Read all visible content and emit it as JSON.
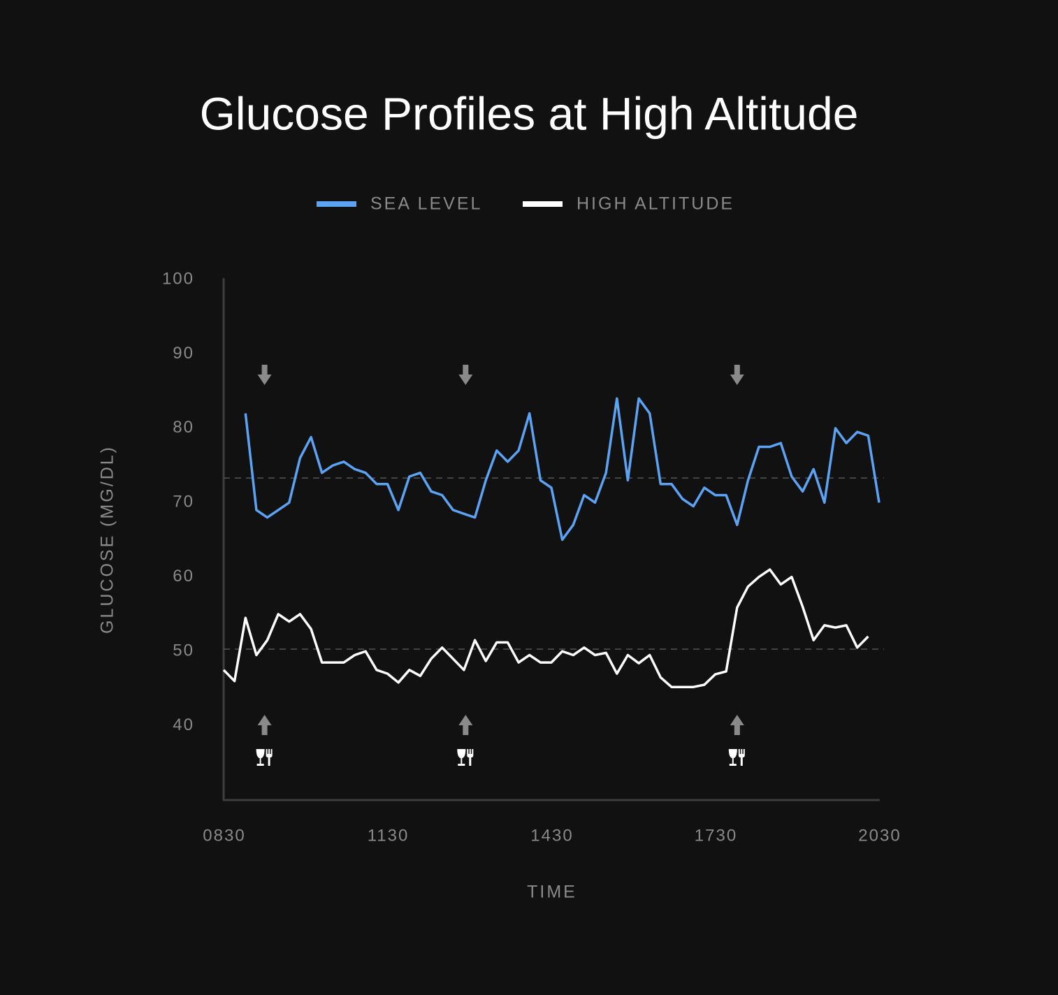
{
  "chart_data": {
    "type": "line",
    "title": "Glucose Profiles at High Altitude",
    "xlabel": "TIME",
    "ylabel": "GLUCOSE (MG/DL)",
    "x": [
      8.5,
      8.7,
      8.9,
      9.1,
      9.3,
      9.5,
      9.7,
      9.9,
      10.1,
      10.3,
      10.5,
      10.7,
      10.9,
      11.1,
      11.3,
      11.5,
      11.7,
      11.9,
      12.1,
      12.3,
      12.5,
      12.7,
      12.9,
      13.1,
      13.3,
      13.5,
      13.7,
      13.9,
      14.1,
      14.3,
      14.5,
      14.7,
      14.9,
      15.1,
      15.3,
      15.5,
      15.7,
      15.9,
      16.1,
      16.3,
      16.5,
      16.7,
      16.9,
      17.1,
      17.3,
      17.5,
      17.7,
      17.9,
      18.1,
      18.3,
      18.5,
      18.7,
      18.9,
      19.1,
      19.3,
      19.5,
      19.7,
      19.9,
      20.1,
      20.3,
      20.5
    ],
    "series": [
      {
        "name": "SEA LEVEL",
        "color": "#5ba4f5",
        "values": [
          null,
          null,
          82,
          69,
          68,
          69,
          70,
          76,
          78.8,
          74,
          75,
          75.5,
          74.5,
          74,
          72.5,
          72.5,
          69,
          73.5,
          74,
          71.5,
          71,
          69,
          68.5,
          68,
          73,
          77,
          75.5,
          77,
          82,
          73,
          72,
          65,
          67,
          71,
          70,
          74,
          84,
          73,
          84,
          82,
          72.5,
          72.5,
          70.5,
          69.5,
          72,
          71,
          71,
          67,
          73,
          77.5,
          77.5,
          78,
          73.5,
          71.5,
          74.5,
          70,
          80,
          78,
          79.5,
          79,
          70
        ]
      },
      {
        "name": "HIGH ALTITUDE",
        "color": "#ffffff",
        "values": [
          47.5,
          46,
          54.5,
          49.5,
          51.5,
          55,
          54,
          55,
          53,
          48.5,
          48.5,
          48.5,
          49.5,
          50,
          47.5,
          47,
          45.8,
          47.5,
          46.7,
          49,
          50.5,
          49,
          47.5,
          51.5,
          48.7,
          51.2,
          51.2,
          48.5,
          49.5,
          48.5,
          48.5,
          50,
          49.5,
          50.5,
          49.5,
          49.8,
          47,
          49.5,
          48.4,
          49.5,
          46.5,
          45.2,
          45.2,
          45.2,
          45.5,
          46.9,
          47.3,
          55.9,
          58.7,
          60,
          61,
          59,
          60,
          56,
          51.5,
          53.5,
          53.2,
          53.5,
          50.5,
          52,
          null
        ]
      }
    ],
    "reference_lines": [
      73.3,
      50.3
    ],
    "meals": [
      9.25,
      12.93,
      17.9
    ],
    "xlim": [
      8.5,
      20.5
    ],
    "xticks": [
      {
        "value": 8.5,
        "label": "0830"
      },
      {
        "value": 11.5,
        "label": "1130"
      },
      {
        "value": 14.5,
        "label": "1430"
      },
      {
        "value": 17.5,
        "label": "1730"
      },
      {
        "value": 20.5,
        "label": "2030"
      }
    ],
    "ylim": [
      30,
      100
    ],
    "yticks": [
      40,
      50,
      60,
      70,
      80,
      90,
      100
    ]
  }
}
